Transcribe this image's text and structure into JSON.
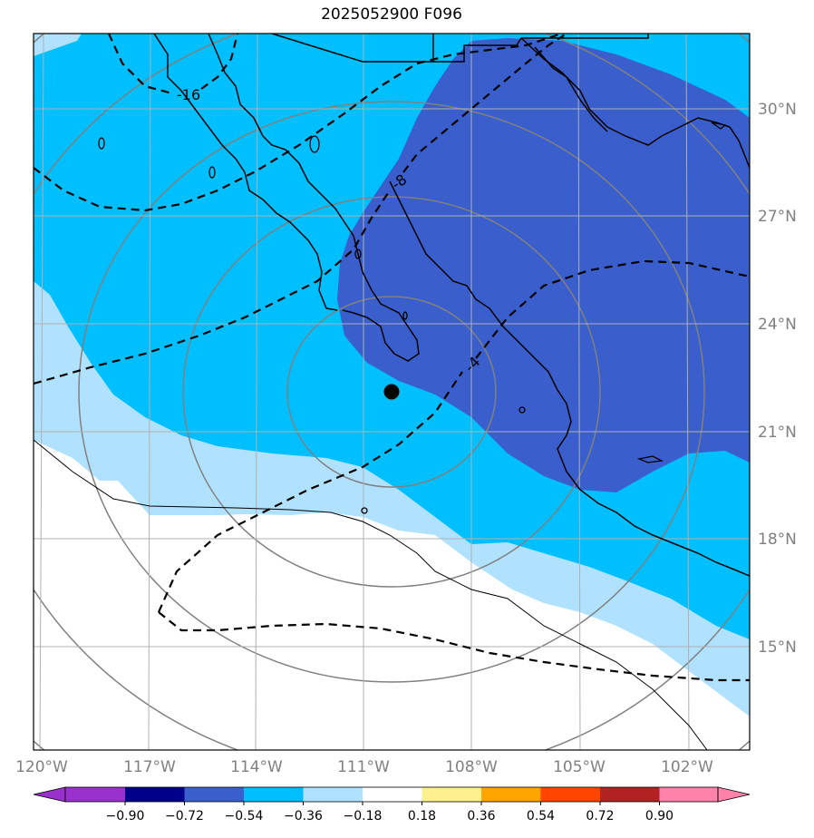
{
  "title": "2025052900 F096",
  "storm_center": {
    "lon": -110.7,
    "lat": 22.1
  },
  "lon_ticks": [
    "120°W",
    "117°W",
    "114°W",
    "111°W",
    "108°W",
    "105°W",
    "102°W"
  ],
  "lat_ticks": [
    "30°N",
    "27°N",
    "24°N",
    "21°N",
    "18°N",
    "15°N"
  ],
  "contour_labels": [
    "-16",
    "-8",
    "-4"
  ],
  "colorbar": {
    "tick_labels": [
      "−0.90",
      "−0.72",
      "−0.54",
      "−0.36",
      "−0.18",
      "0.18",
      "0.36",
      "0.54",
      "0.72",
      "0.90"
    ],
    "colors": [
      "#9932cc",
      "#00008b",
      "#3a5fcd",
      "#00bfff",
      "#b0e2ff",
      "#ffffff",
      "#fff08f",
      "#ffa500",
      "#ff4500",
      "#b22222",
      "#ff82ab"
    ]
  },
  "fill_colors": {
    "dark_blue": "#3a5fcd",
    "cyan": "#00bfff",
    "light_blue": "#b0e2ff"
  }
}
